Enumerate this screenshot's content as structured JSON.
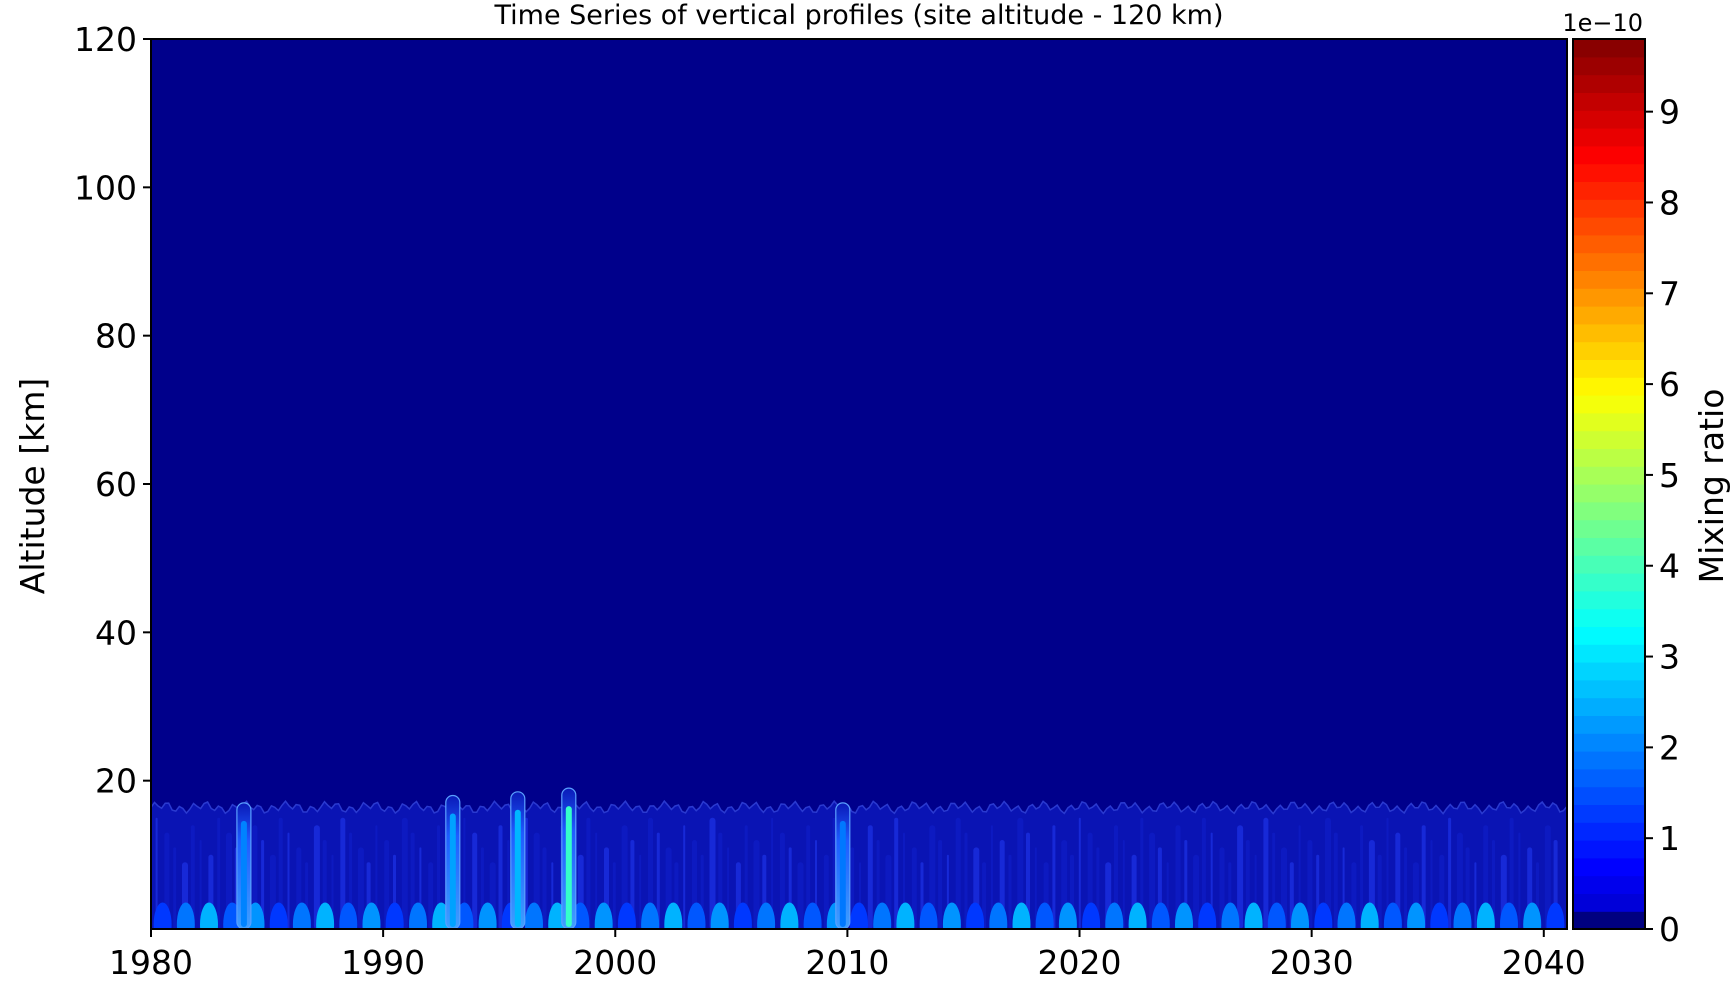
{
  "chart_data": {
    "type": "heatmap",
    "title": "Time Series of vertical profiles (site altitude - 120 km)",
    "ylabel": "Altitude [km]",
    "xlabel": "",
    "xlim": [
      1980,
      2041
    ],
    "ylim": [
      0,
      120
    ],
    "x_ticks": [
      "1980",
      "1990",
      "2000",
      "2010",
      "2020",
      "2030",
      "2040"
    ],
    "y_ticks": [
      "20",
      "40",
      "60",
      "80",
      "100",
      "120"
    ],
    "colorbar": {
      "label": "Mixing ratio",
      "offset_text": "1e−10",
      "range": [
        0,
        9.8
      ],
      "ticks": [
        "0",
        "1",
        "2",
        "3",
        "4",
        "5",
        "6",
        "7",
        "8",
        "9"
      ],
      "colormap": "jet",
      "levels": 50
    },
    "background_value": 0,
    "enhanced_layer_top_km": 17,
    "spikes": [
      {
        "x": 1984,
        "top": 17,
        "peak": 1.5
      },
      {
        "x": 1993,
        "top": 18,
        "peak": 1.8
      },
      {
        "x": 1995.8,
        "top": 18.5,
        "peak": 2.0
      },
      {
        "x": 1998,
        "top": 19,
        "peak": 3.2
      },
      {
        "x": 2009.8,
        "top": 17,
        "peak": 1.4
      }
    ]
  }
}
